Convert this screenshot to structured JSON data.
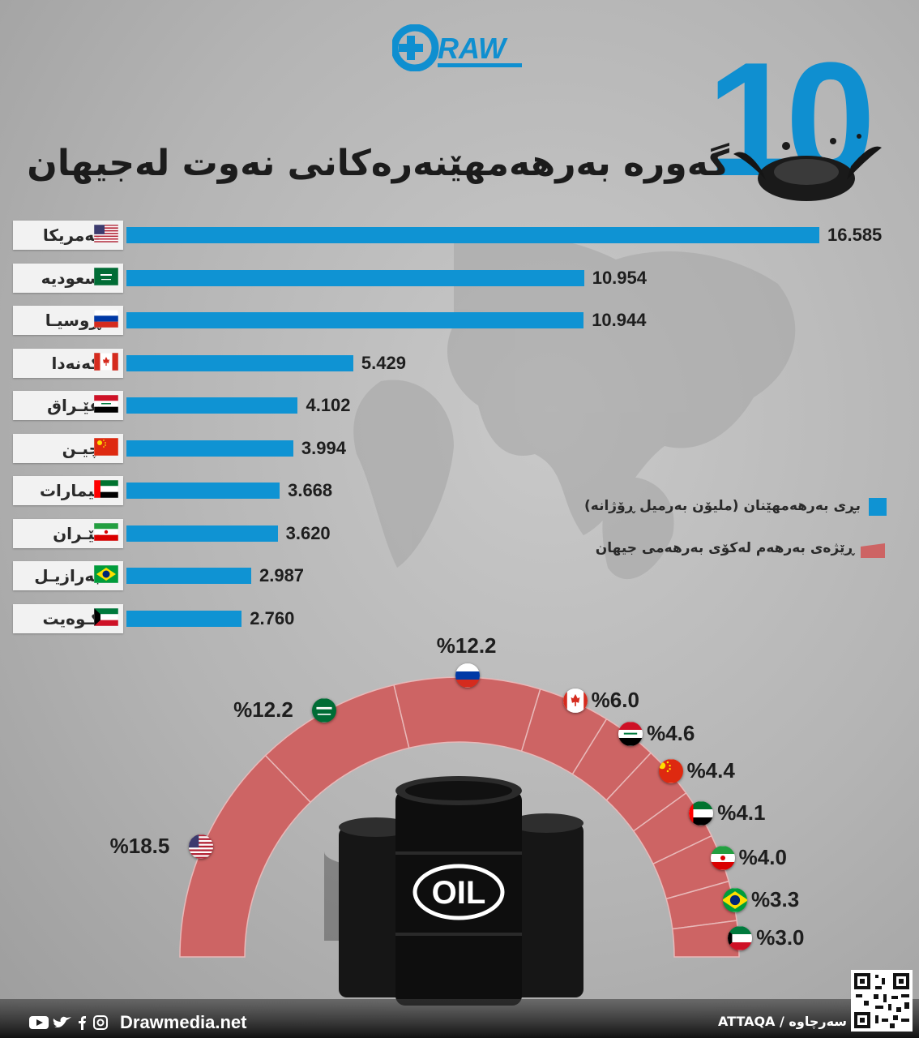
{
  "brand": {
    "logo_text": "RAW",
    "website": "Drawmedia.net",
    "source": "سەرچاوە / ATTAQA"
  },
  "title": {
    "number": "10",
    "text": "گەورە بەرهەمهێنەرەکانی نەوت لەجیهان"
  },
  "legend": {
    "production": "بڕی بەرهەمهێنان (ملیۆن بەرمیل ڕۆژانە)",
    "share": "ڕێژەی بەرهەم لەکۆی بەرهەمی جیهان"
  },
  "colors": {
    "production": "#0f93d3",
    "share": "#cd6464",
    "accent": "#0f8fd0"
  },
  "icons": [
    "youtube-icon",
    "twitter-icon",
    "facebook-icon",
    "instagram-icon",
    "qr-code-icon"
  ],
  "chart_data": [
    {
      "type": "bar",
      "orientation": "horizontal",
      "categories": [
        "ئەمریکا",
        "سعودیە",
        "ڕوسیـا",
        "کەنەدا",
        "عێـراق",
        "چیـن",
        "ئیمارات",
        "ئێـران",
        "بەرازیـل",
        "کـوەیت"
      ],
      "flags": [
        "us",
        "sa",
        "ru",
        "ca",
        "iq",
        "cn",
        "ae",
        "ir",
        "br",
        "kw"
      ],
      "series": [
        {
          "name": "بڕی بەرهەمهێنان (ملیۆن بەرمیل ڕۆژانە)",
          "values": [
            16.585,
            10.954,
            10.944,
            5.429,
            4.102,
            3.994,
            3.668,
            3.62,
            2.987,
            2.76
          ],
          "labels": [
            "16.585",
            "10.954",
            "10.944",
            "5.429",
            "4.102",
            "3.994",
            "3.668",
            "3.620",
            "2.987",
            "2.760"
          ]
        }
      ],
      "xlim": [
        0,
        16.585
      ]
    },
    {
      "type": "pie",
      "variant": "semicircle-gauge",
      "categories": [
        "us",
        "sa",
        "ru",
        "ca",
        "iq",
        "cn",
        "ae",
        "ir",
        "br",
        "kw"
      ],
      "series": [
        {
          "name": "ڕێژەی بەرهەم لەکۆی بەرهەمی جیهان",
          "values": [
            18.5,
            12.2,
            12.2,
            6.0,
            4.6,
            4.4,
            4.1,
            4.0,
            3.3,
            3.0
          ],
          "labels": [
            "%18.5",
            "%12.2",
            "%12.2",
            "%6.0",
            "%4.6",
            "%4.4",
            "%4.1",
            "%4.0",
            "%3.3",
            "%3.0"
          ]
        }
      ]
    }
  ]
}
